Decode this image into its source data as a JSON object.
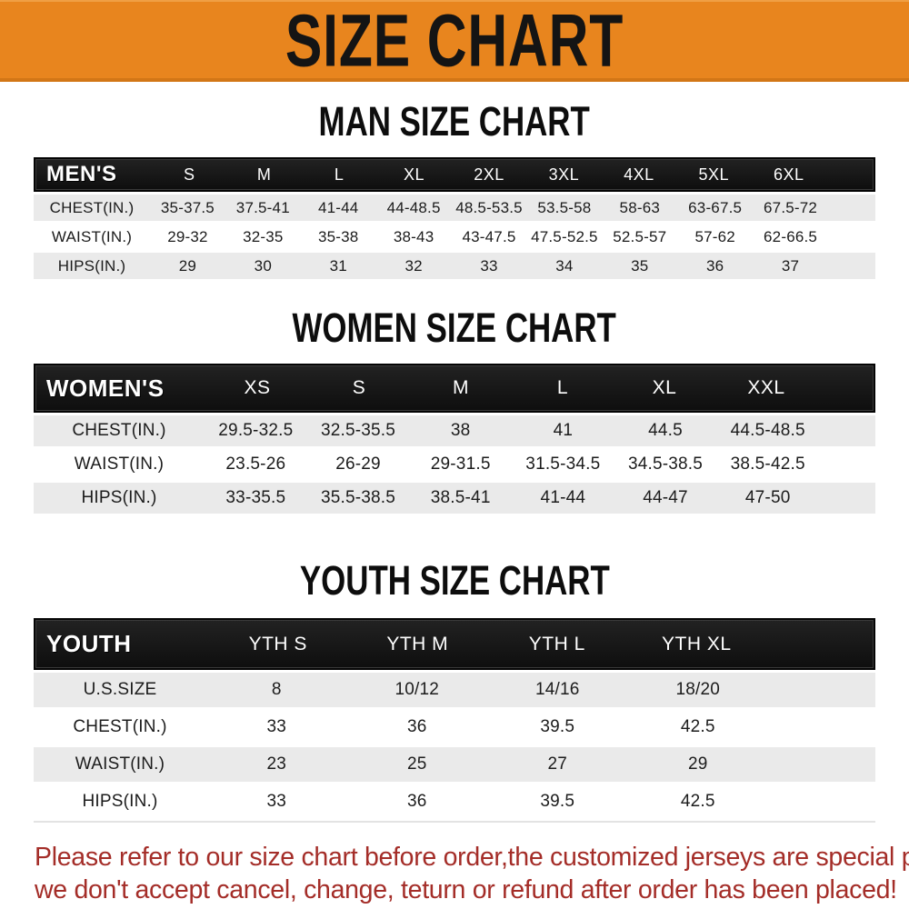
{
  "banner": {
    "title": "SIZE CHART",
    "background_color": "#e8851e"
  },
  "sections": {
    "men": {
      "title": "MAN SIZE CHART",
      "table": {
        "header": [
          "MEN'S",
          "S",
          "M",
          "L",
          "XL",
          "2XL",
          "3XL",
          "4XL",
          "5XL",
          "6XL"
        ],
        "rows": [
          [
            "CHEST(IN.)",
            "35-37.5",
            "37.5-41",
            "41-44",
            "44-48.5",
            "48.5-53.5",
            "53.5-58",
            "58-63",
            "63-67.5",
            "67.5-72"
          ],
          [
            "WAIST(IN.)",
            "29-32",
            "32-35",
            "35-38",
            "38-43",
            "43-47.5",
            "47.5-52.5",
            "52.5-57",
            "57-62",
            "62-66.5"
          ],
          [
            "HIPS(IN.)",
            "29",
            "30",
            "31",
            "32",
            "33",
            "34",
            "35",
            "36",
            "37"
          ]
        ]
      }
    },
    "women": {
      "title": "WOMEN SIZE CHART",
      "table": {
        "header": [
          "WOMEN'S",
          "XS",
          "S",
          "M",
          "L",
          "XL",
          "XXL"
        ],
        "rows": [
          [
            "CHEST(IN.)",
            "29.5-32.5",
            "32.5-35.5",
            "38",
            "41",
            "44.5",
            "44.5-48.5"
          ],
          [
            "WAIST(IN.)",
            "23.5-26",
            "26-29",
            "29-31.5",
            "31.5-34.5",
            "34.5-38.5",
            "38.5-42.5"
          ],
          [
            "HIPS(IN.)",
            "33-35.5",
            "35.5-38.5",
            "38.5-41",
            "41-44",
            "44-47",
            "47-50"
          ]
        ]
      }
    },
    "youth": {
      "title": "YOUTH SIZE CHART",
      "table": {
        "header": [
          "YOUTH",
          "YTH S",
          "YTH M",
          "YTH L",
          "YTH XL"
        ],
        "rows": [
          [
            "U.S.SIZE",
            "8",
            "10/12",
            "14/16",
            "18/20"
          ],
          [
            "CHEST(IN.)",
            "33",
            "36",
            "39.5",
            "42.5"
          ],
          [
            "WAIST(IN.)",
            "23",
            "25",
            "27",
            "29"
          ],
          [
            "HIPS(IN.)",
            "33",
            "36",
            "39.5",
            "42.5"
          ]
        ]
      }
    }
  },
  "footer": {
    "line1": "Please refer to our size chart before order,the customized jerseys are special products,",
    "line2": "we don't accept cancel, change, teturn or refund after order has been placed!",
    "text_color": "#a42d28"
  }
}
